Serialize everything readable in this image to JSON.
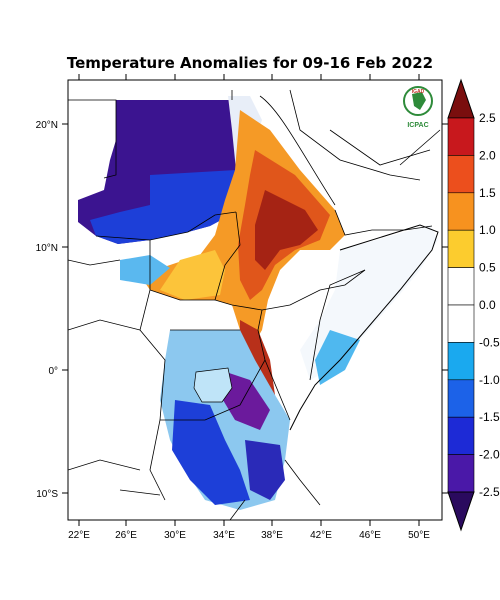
{
  "title": "Temperature Anomalies for 09-16 Feb 2022",
  "lat_labels": [
    "20°N",
    "10°N",
    "0°",
    "10°S"
  ],
  "lon_labels": [
    "22°E",
    "26°E",
    "30°E",
    "34°E",
    "38°E",
    "42°E",
    "46°E",
    "50°E"
  ],
  "colorbar": {
    "labels": [
      "2.5",
      "2.0",
      "1.5",
      "1.0",
      "0.5",
      "0.0",
      "-0.5",
      "-1.0",
      "-1.5",
      "-2.0",
      "-2.5"
    ],
    "colors": [
      "#7a0e0e",
      "#c8181d",
      "#ec4f1d",
      "#f7921f",
      "#fccc2e",
      "#ffffff",
      "#ffffff",
      "#1aa9ef",
      "#1c62e8",
      "#1d2ad6",
      "#4a18a8",
      "#2a0a5e"
    ]
  },
  "logo": {
    "top_text": "IGAD",
    "bottom_text": "ICPAC"
  }
}
